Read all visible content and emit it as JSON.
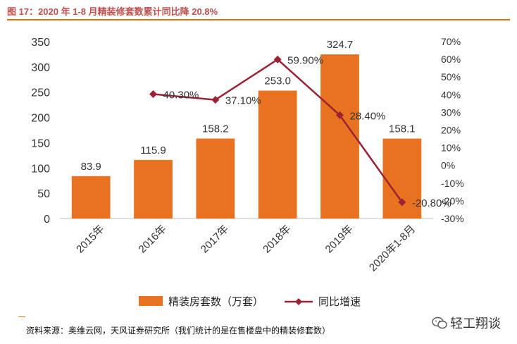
{
  "header": {
    "title": "图 17：2020 年 1-8 月精装修套数累计同比降 20.8%"
  },
  "chart_data": {
    "type": "bar",
    "categories": [
      "2015年",
      "2016年",
      "2017年",
      "2018年",
      "2019年",
      "2020年1-8月"
    ],
    "series": [
      {
        "name": "精装房套数（万套）",
        "type": "bar",
        "axis": "left",
        "values": [
          83.9,
          115.9,
          158.2,
          253.0,
          324.7,
          158.1
        ],
        "labels": [
          "83.9",
          "115.9",
          "158.2",
          "253.0",
          "324.7",
          "158.1"
        ]
      },
      {
        "name": "同比增速",
        "type": "line",
        "axis": "right",
        "values": [
          null,
          40.3,
          37.1,
          59.9,
          28.4,
          -20.8
        ],
        "labels": [
          "",
          "40.30%",
          "37.10%",
          "59.90%",
          "28.40%",
          "-20.80%"
        ]
      }
    ],
    "left_axis": {
      "ylim": [
        0,
        350
      ],
      "ticks": [
        "0",
        "50",
        "100",
        "150",
        "200",
        "250",
        "300",
        "350"
      ]
    },
    "right_axis": {
      "ylim": [
        -30,
        70
      ],
      "ticks": [
        "-30%",
        "-20%",
        "-10%",
        "0%",
        "10%",
        "20%",
        "30%",
        "40%",
        "50%",
        "60%",
        "70%"
      ]
    },
    "legend": {
      "position": "bottom",
      "bar_label": "精装房套数（万套）",
      "line_label": "同比增速"
    },
    "colors": {
      "bar": "#e8721f",
      "line": "#9b2335"
    }
  },
  "footer": {
    "source": "资料来源：奥维云网，天风证券研究所（我们统计的是在售楼盘中的精装修套数）",
    "brand": "轻工翔谈"
  }
}
